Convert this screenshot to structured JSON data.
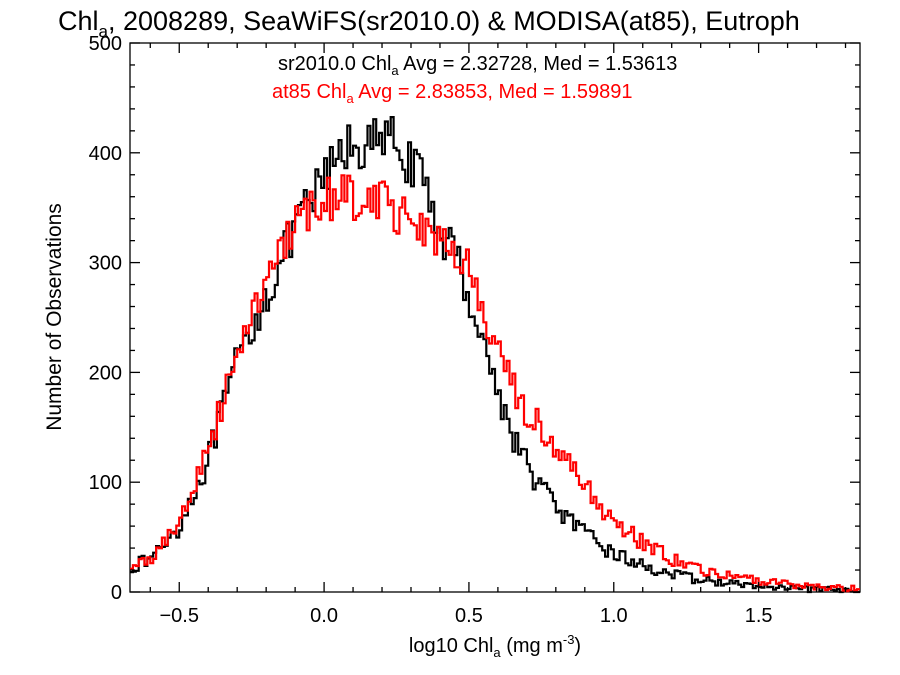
{
  "chart_data": {
    "type": "line",
    "title": {
      "prefix": "Chl",
      "sub": "a",
      "rest": ", 2008289, SeaWiFS(sr2010.0) & MODISA(at85), Eutroph"
    },
    "xlabel": {
      "prefix": "log10 Chl",
      "sub": "a",
      "mid": " (mg m",
      "sup": "-3",
      "end": ")"
    },
    "ylabel": "Number of Observations",
    "xlim": [
      -0.67,
      1.85
    ],
    "ylim": [
      0,
      500
    ],
    "x_ticks": [
      -0.5,
      0.0,
      0.5,
      1.0,
      1.5
    ],
    "x_tick_labels": [
      "−0.5",
      "0.0",
      "0.5",
      "1.0",
      "1.5"
    ],
    "y_ticks": [
      0,
      100,
      200,
      300,
      400,
      500
    ],
    "y_tick_labels": [
      "0",
      "100",
      "200",
      "300",
      "400",
      "500"
    ],
    "annotations": [
      {
        "prefix": "sr2010.0 Chl",
        "sub": "a",
        "rest": " Avg = 2.32728, Med = 1.53613",
        "color": "#000000"
      },
      {
        "prefix": "at85 Chl",
        "sub": "a",
        "rest": " Avg = 2.83853, Med = 1.59891",
        "color": "#ff0000"
      }
    ],
    "bin_width": 0.01,
    "series": [
      {
        "color": "#000000",
        "x": [
          -0.67,
          -0.6,
          -0.5,
          -0.4,
          -0.3,
          -0.2,
          -0.1,
          0.0,
          0.05,
          0.1,
          0.15,
          0.2,
          0.25,
          0.3,
          0.35,
          0.4,
          0.45,
          0.5,
          0.55,
          0.6,
          0.65,
          0.7,
          0.8,
          0.9,
          1.0,
          1.1,
          1.2,
          1.3,
          1.4,
          1.5,
          1.6,
          1.7,
          1.85
        ],
        "y": [
          22,
          30,
          60,
          120,
          210,
          270,
          330,
          375,
          395,
          410,
          405,
          410,
          410,
          390,
          365,
          330,
          310,
          270,
          230,
          180,
          145,
          115,
          78,
          52,
          35,
          24,
          16,
          11,
          8,
          5,
          3,
          2,
          1
        ]
      },
      {
        "color": "#ff0000",
        "x": [
          -0.67,
          -0.6,
          -0.5,
          -0.4,
          -0.3,
          -0.2,
          -0.1,
          0.0,
          0.05,
          0.1,
          0.15,
          0.2,
          0.25,
          0.3,
          0.35,
          0.4,
          0.45,
          0.5,
          0.55,
          0.6,
          0.65,
          0.7,
          0.8,
          0.9,
          1.0,
          1.1,
          1.2,
          1.3,
          1.4,
          1.5,
          1.6,
          1.7,
          1.85
        ],
        "y": [
          22,
          30,
          65,
          125,
          225,
          285,
          330,
          355,
          365,
          360,
          365,
          360,
          345,
          340,
          335,
          320,
          310,
          290,
          255,
          215,
          185,
          165,
          130,
          95,
          65,
          45,
          30,
          20,
          14,
          10,
          7,
          5,
          3
        ]
      }
    ]
  }
}
